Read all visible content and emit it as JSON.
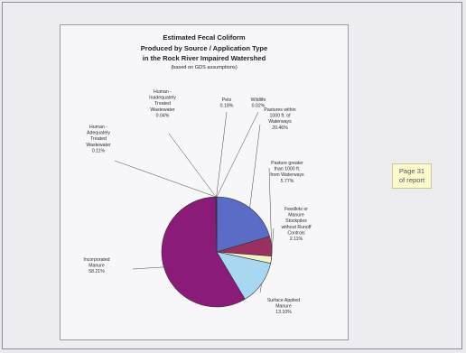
{
  "chart_data": {
    "type": "pie",
    "title": "Estimated Fecal Coliform Produced by Source / Application Type in the Rock River Impaired Watershed",
    "title_lines": [
      "Estimated Fecal Coliform",
      "Produced by Source / Application Type",
      "in the Rock River Impaired Watershed"
    ],
    "subtitle": "(based on GDS assumptions)",
    "start_angle_deg": 0,
    "direction": "clockwise",
    "slices": [
      {
        "label_lines": [
          "Pastures within",
          "1000 ft. of",
          "Waterways"
        ],
        "value_text": "20.46%",
        "value": 20.46,
        "color": "#5b6cc7"
      },
      {
        "label_lines": [
          "Pasture greater",
          "than 1000 ft.",
          "from Waterways"
        ],
        "value_text": "5.77%",
        "value": 5.77,
        "color": "#9a2f62"
      },
      {
        "label_lines": [
          "Feedlots or",
          "Manure",
          "Stockpiles",
          "without Runoff",
          "Controls"
        ],
        "value_text": "2.11%",
        "value": 2.11,
        "color": "#f4f1c6"
      },
      {
        "label_lines": [
          "Surface Applied",
          "Manure"
        ],
        "value_text": "13.10%",
        "value": 13.1,
        "color": "#a9d7f2"
      },
      {
        "label_lines": [
          "Incorporated",
          "Manure"
        ],
        "value_text": "58.21%",
        "value": 58.21,
        "color": "#8a1b79"
      },
      {
        "label_lines": [
          "Human -",
          "Adequately",
          "Treated",
          "Wastewater"
        ],
        "value_text": "0.11%",
        "value": 0.11,
        "color": "#5b2a58"
      },
      {
        "label_lines": [
          "Human -",
          "Inadequately",
          "Treated",
          "Wastewater"
        ],
        "value_text": "0.04%",
        "value": 0.04,
        "color": "#e7e2c5"
      },
      {
        "label_lines": [
          "Pets"
        ],
        "value_text": "0.18%",
        "value": 0.18,
        "color": "#9dc7e6"
      },
      {
        "label_lines": [
          "Wildlife"
        ],
        "value_text": "0.02%",
        "value": 0.02,
        "color": "#3d2f8c"
      }
    ]
  },
  "annotation": {
    "lines": [
      "Page 31",
      "of report"
    ]
  }
}
